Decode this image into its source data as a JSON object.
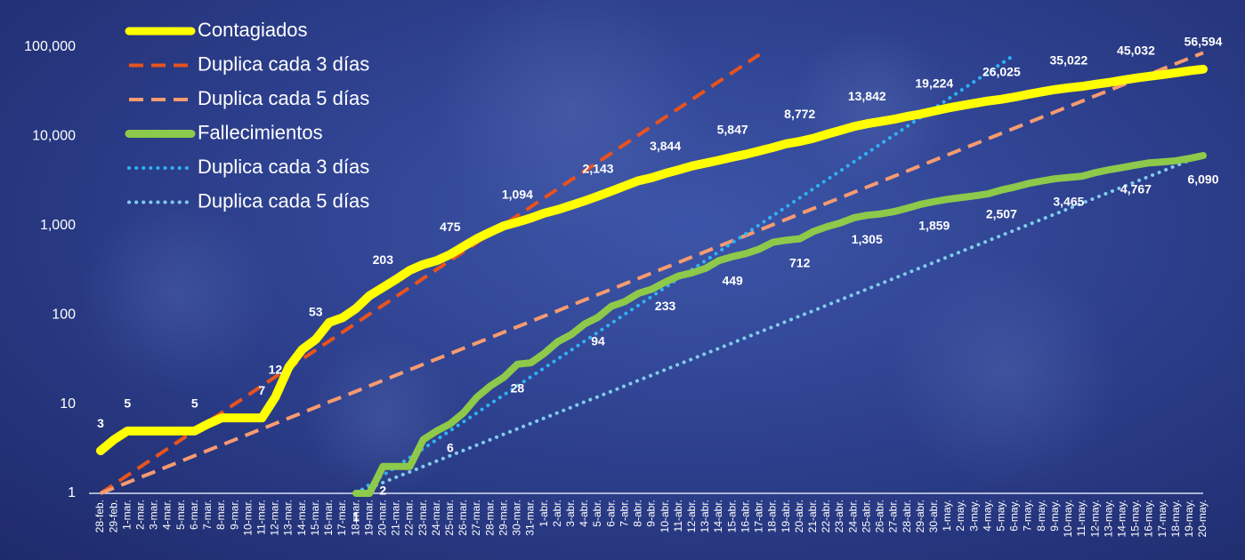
{
  "chart_data": {
    "type": "line",
    "log_y": true,
    "legend": "top-left",
    "ylim": [
      1,
      100000
    ],
    "yticks": [
      1,
      10,
      100,
      {
        "value": 1000,
        "label": "1,000"
      },
      {
        "value": 10000,
        "label": "10,000"
      },
      {
        "value": 100000,
        "label": "100,000"
      }
    ],
    "categories": [
      "28-feb.",
      "29-feb.",
      "1-mar.",
      "2-mar.",
      "3-mar.",
      "4-mar.",
      "5-mar.",
      "6-mar.",
      "7-mar.",
      "8-mar.",
      "9-mar.",
      "10-mar.",
      "11-mar.",
      "12-mar.",
      "13-mar.",
      "14-mar.",
      "15-mar.",
      "16-mar.",
      "17-mar.",
      "18-mar.",
      "19-mar.",
      "20-mar.",
      "21-mar.",
      "22-mar.",
      "23-mar.",
      "24-mar.",
      "25-mar.",
      "26-mar.",
      "27-mar.",
      "28-mar.",
      "29-mar.",
      "30-mar.",
      "31-mar.",
      "1-abr.",
      "2-abr.",
      "3-abr.",
      "4-abr.",
      "5-abr.",
      "6-abr.",
      "7-abr.",
      "8-abr.",
      "9-abr.",
      "10-abr.",
      "11-abr.",
      "12-abr.",
      "13-abr.",
      "14-abr.",
      "15-abr.",
      "16-abr.",
      "17-abr.",
      "18-abr.",
      "19-abr.",
      "20-abr.",
      "21-abr.",
      "22-abr.",
      "23-abr.",
      "24-abr.",
      "25-abr.",
      "26-abr.",
      "27-abr.",
      "28-abr.",
      "29-abr.",
      "30-abr.",
      "1-may.",
      "2-may.",
      "3-may.",
      "4-may.",
      "5-may.",
      "6-may.",
      "7-may.",
      "8-may.",
      "9-may.",
      "10-may.",
      "11-may.",
      "12-may.",
      "13-may.",
      "14-may.",
      "15-may.",
      "16-may.",
      "17-may.",
      "18-may.",
      "19-may.",
      "20-may."
    ],
    "series": [
      {
        "name": "Contagiados",
        "color": "#ffff00",
        "style": "solid",
        "values": [
          3,
          4,
          5,
          5,
          5,
          5,
          5,
          5,
          6,
          7,
          7,
          7,
          7,
          12,
          26,
          41,
          53,
          82,
          93,
          118,
          164,
          203,
          251,
          316,
          367,
          405,
          475,
          585,
          717,
          848,
          993,
          1094,
          1215,
          1378,
          1510,
          1688,
          1890,
          2143,
          2439,
          2785,
          3181,
          3441,
          3844,
          4219,
          4661,
          5014,
          5399,
          5847,
          6297,
          6875,
          7497,
          8261,
          8772,
          9501,
          10544,
          11633,
          12872,
          13842,
          14677,
          15529,
          16752,
          17799,
          19224,
          20739,
          22088,
          23471,
          24905,
          26025,
          27634,
          29616,
          31522,
          33460,
          35022,
          36327,
          38324,
          40186,
          42595,
          45032,
          47144,
          49219,
          51633,
          54346,
          56594
        ],
        "value_labels": [
          "3",
          null,
          "5",
          null,
          null,
          null,
          null,
          "5",
          null,
          null,
          null,
          null,
          "7",
          "12",
          null,
          null,
          "53",
          null,
          null,
          null,
          null,
          "203",
          null,
          null,
          null,
          null,
          "475",
          null,
          null,
          null,
          null,
          "1,094",
          null,
          null,
          null,
          null,
          null,
          "2,143",
          null,
          null,
          null,
          null,
          "3,844",
          null,
          null,
          null,
          null,
          "5,847",
          null,
          null,
          null,
          null,
          "8,772",
          null,
          null,
          null,
          null,
          "13,842",
          null,
          null,
          null,
          null,
          "19,224",
          null,
          null,
          null,
          null,
          "26,025",
          null,
          null,
          null,
          null,
          "35,022",
          null,
          null,
          null,
          null,
          "45,032",
          null,
          null,
          null,
          null,
          "56,594"
        ]
      },
      {
        "name": "Duplica cada 3 días",
        "color": "#e8531e",
        "style": "dashed",
        "values": [
          1,
          1.26,
          1.59,
          2,
          2.52,
          3.17,
          4,
          5.04,
          6.35,
          8,
          10.1,
          12.7,
          16,
          20.2,
          25.4,
          32,
          40.3,
          50.8,
          64,
          80.6,
          102,
          128,
          161,
          203,
          256,
          323,
          406,
          512,
          645,
          813,
          1024,
          1290,
          1625,
          2048,
          2580,
          3251,
          4096,
          5161,
          6502,
          8192,
          10300,
          13000,
          16400,
          20600,
          26000,
          32800,
          41300,
          52000,
          65500,
          82600,
          null,
          null,
          null,
          null,
          null,
          null,
          null,
          null,
          null,
          null,
          null,
          null,
          null,
          null,
          null,
          null,
          null,
          null,
          null,
          null,
          null,
          null,
          null,
          null,
          null,
          null,
          null,
          null,
          null,
          null,
          null,
          null,
          null
        ]
      },
      {
        "name": "Duplica cada 5 días",
        "color": "#f79b70",
        "style": "dashed",
        "values": [
          1,
          1.15,
          1.32,
          1.52,
          1.74,
          2,
          2.3,
          2.64,
          3.03,
          3.48,
          4,
          4.6,
          5.28,
          6.06,
          6.96,
          8,
          9.19,
          10.6,
          12.1,
          13.9,
          16,
          18.4,
          21.1,
          24.3,
          27.9,
          32,
          36.8,
          42.2,
          48.5,
          55.7,
          64,
          73.5,
          84.4,
          97,
          111,
          128,
          147,
          169,
          194,
          223,
          256,
          294,
          338,
          388,
          446,
          512,
          588,
          676,
          776,
          891,
          1024,
          1176,
          1351,
          1552,
          1783,
          2048,
          2353,
          2703,
          3104,
          3566,
          4096,
          4705,
          5405,
          6208,
          7131,
          8192,
          9410,
          10810,
          12417,
          14263,
          16384,
          18820,
          21619,
          24834,
          28526,
          32768,
          37641,
          43238,
          49667,
          57052,
          65536,
          75281,
          86475
        ]
      },
      {
        "name": "Fallecimientos",
        "color": "#8dc94a",
        "style": "solid",
        "values": [
          null,
          null,
          null,
          null,
          null,
          null,
          null,
          null,
          null,
          null,
          null,
          null,
          null,
          null,
          null,
          null,
          null,
          null,
          null,
          1,
          1,
          2,
          2,
          2,
          4,
          5,
          6,
          8,
          12,
          16,
          20,
          28,
          29,
          37,
          50,
          60,
          79,
          94,
          125,
          141,
          174,
          194,
          233,
          273,
          296,
          332,
          406,
          449,
          486,
          546,
          650,
          686,
          712,
          857,
          970,
          1069,
          1221,
          1305,
          1351,
          1434,
          1569,
          1732,
          1859,
          1972,
          2061,
          2154,
          2271,
          2507,
          2704,
          2961,
          3160,
          3353,
          3465,
          3573,
          3926,
          4220,
          4477,
          4767,
          5045,
          5177,
          5332,
          5666,
          6090
        ],
        "value_labels": [
          null,
          null,
          null,
          null,
          null,
          null,
          null,
          null,
          null,
          null,
          null,
          null,
          null,
          null,
          null,
          null,
          null,
          null,
          null,
          "1",
          null,
          "2",
          null,
          null,
          null,
          null,
          "6",
          null,
          null,
          null,
          null,
          "28",
          null,
          null,
          null,
          null,
          null,
          "94",
          null,
          null,
          null,
          null,
          "233",
          null,
          null,
          null,
          null,
          "449",
          null,
          null,
          null,
          null,
          "712",
          null,
          null,
          null,
          null,
          "1,305",
          null,
          null,
          null,
          null,
          "1,859",
          null,
          null,
          null,
          null,
          "2,507",
          null,
          null,
          null,
          null,
          "3,465",
          null,
          null,
          null,
          null,
          "4,767",
          null,
          null,
          null,
          null,
          "6,090"
        ]
      },
      {
        "name": "Duplica cada 3 días",
        "color": "#2eb3f2",
        "style": "dotted",
        "values": [
          null,
          null,
          null,
          null,
          null,
          null,
          null,
          null,
          null,
          null,
          null,
          null,
          null,
          null,
          null,
          null,
          null,
          null,
          null,
          1,
          1.26,
          1.59,
          2,
          2.52,
          3.17,
          4,
          5.04,
          6.35,
          8,
          10.1,
          12.7,
          16,
          20.2,
          25.4,
          32,
          40.3,
          50.8,
          64,
          80.6,
          102,
          128,
          161,
          203,
          256,
          323,
          406,
          512,
          645,
          813,
          1024,
          1290,
          1625,
          2048,
          2580,
          3251,
          4096,
          5161,
          6502,
          8192,
          10300,
          13000,
          16400,
          20600,
          26000,
          32800,
          41300,
          52000,
          65500,
          82600,
          null,
          null,
          null,
          null,
          null,
          null,
          null,
          null,
          null,
          null,
          null,
          null,
          null,
          null
        ]
      },
      {
        "name": "Duplica cada 5 días",
        "color": "#80cdef",
        "style": "dotted",
        "values": [
          null,
          null,
          null,
          null,
          null,
          null,
          null,
          null,
          null,
          null,
          null,
          null,
          null,
          null,
          null,
          null,
          null,
          null,
          null,
          1,
          1.15,
          1.32,
          1.52,
          1.74,
          2,
          2.3,
          2.64,
          3.03,
          3.48,
          4,
          4.6,
          5.28,
          6.06,
          6.96,
          8,
          9.19,
          10.6,
          12.1,
          13.9,
          16,
          18.4,
          21.1,
          24.3,
          27.9,
          32,
          36.8,
          42.2,
          48.5,
          55.7,
          64,
          73.5,
          84.4,
          97,
          111,
          128,
          147,
          169,
          194,
          223,
          256,
          294,
          338,
          388,
          446,
          512,
          588,
          676,
          776,
          891,
          1024,
          1176,
          1351,
          1552,
          1783,
          2048,
          2353,
          2703,
          3104,
          3566,
          4096,
          4705,
          5405,
          6208
        ]
      }
    ]
  }
}
